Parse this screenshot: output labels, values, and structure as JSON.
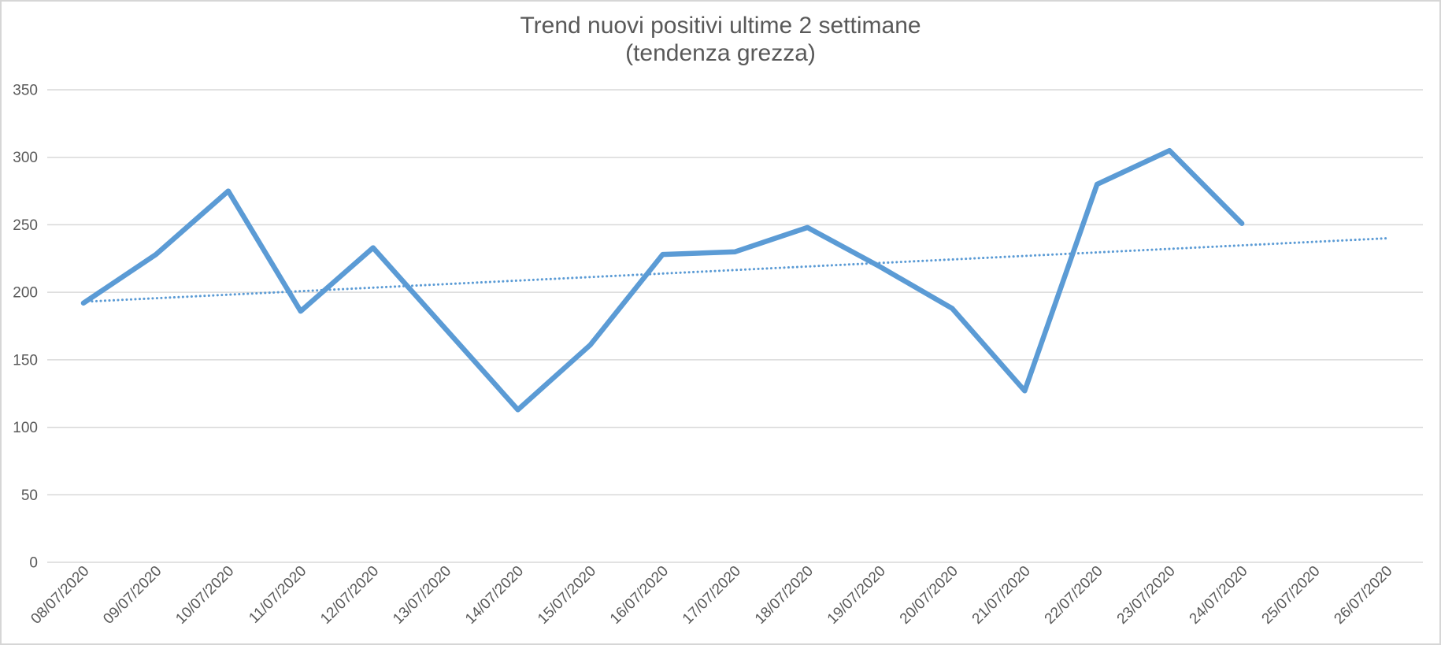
{
  "chart_data": {
    "type": "line",
    "title": "Trend nuovi positivi ultime 2 settimane",
    "subtitle": "(tendenza grezza)",
    "categories": [
      "08/07/2020",
      "09/07/2020",
      "10/07/2020",
      "11/07/2020",
      "12/07/2020",
      "13/07/2020",
      "14/07/2020",
      "15/07/2020",
      "16/07/2020",
      "17/07/2020",
      "18/07/2020",
      "19/07/2020",
      "20/07/2020",
      "21/07/2020",
      "22/07/2020",
      "23/07/2020",
      "24/07/2020",
      "25/07/2020",
      "26/07/2020"
    ],
    "series": [
      {
        "name": "nuovi positivi",
        "values": [
          192,
          228,
          275,
          186,
          233,
          173,
          113,
          161,
          228,
          230,
          248,
          219,
          188,
          127,
          280,
          305,
          251,
          null,
          null
        ]
      }
    ],
    "trendline": {
      "type": "linear",
      "style": "dotted",
      "start_value": 193,
      "end_value": 240
    },
    "ylim": [
      0,
      350
    ],
    "ytick_step": 50,
    "yticks": [
      0,
      50,
      100,
      150,
      200,
      250,
      300,
      350
    ],
    "grid": "horizontal",
    "legend": "none",
    "x_label_rotation_deg": 45,
    "colors": {
      "series": "#5B9BD5",
      "trendline": "#5B9BD5",
      "gridline": "#D9D9D9",
      "axis_text": "#595959",
      "title_text": "#595959",
      "border": "#D6D6D6",
      "background": "#FFFFFF"
    }
  }
}
